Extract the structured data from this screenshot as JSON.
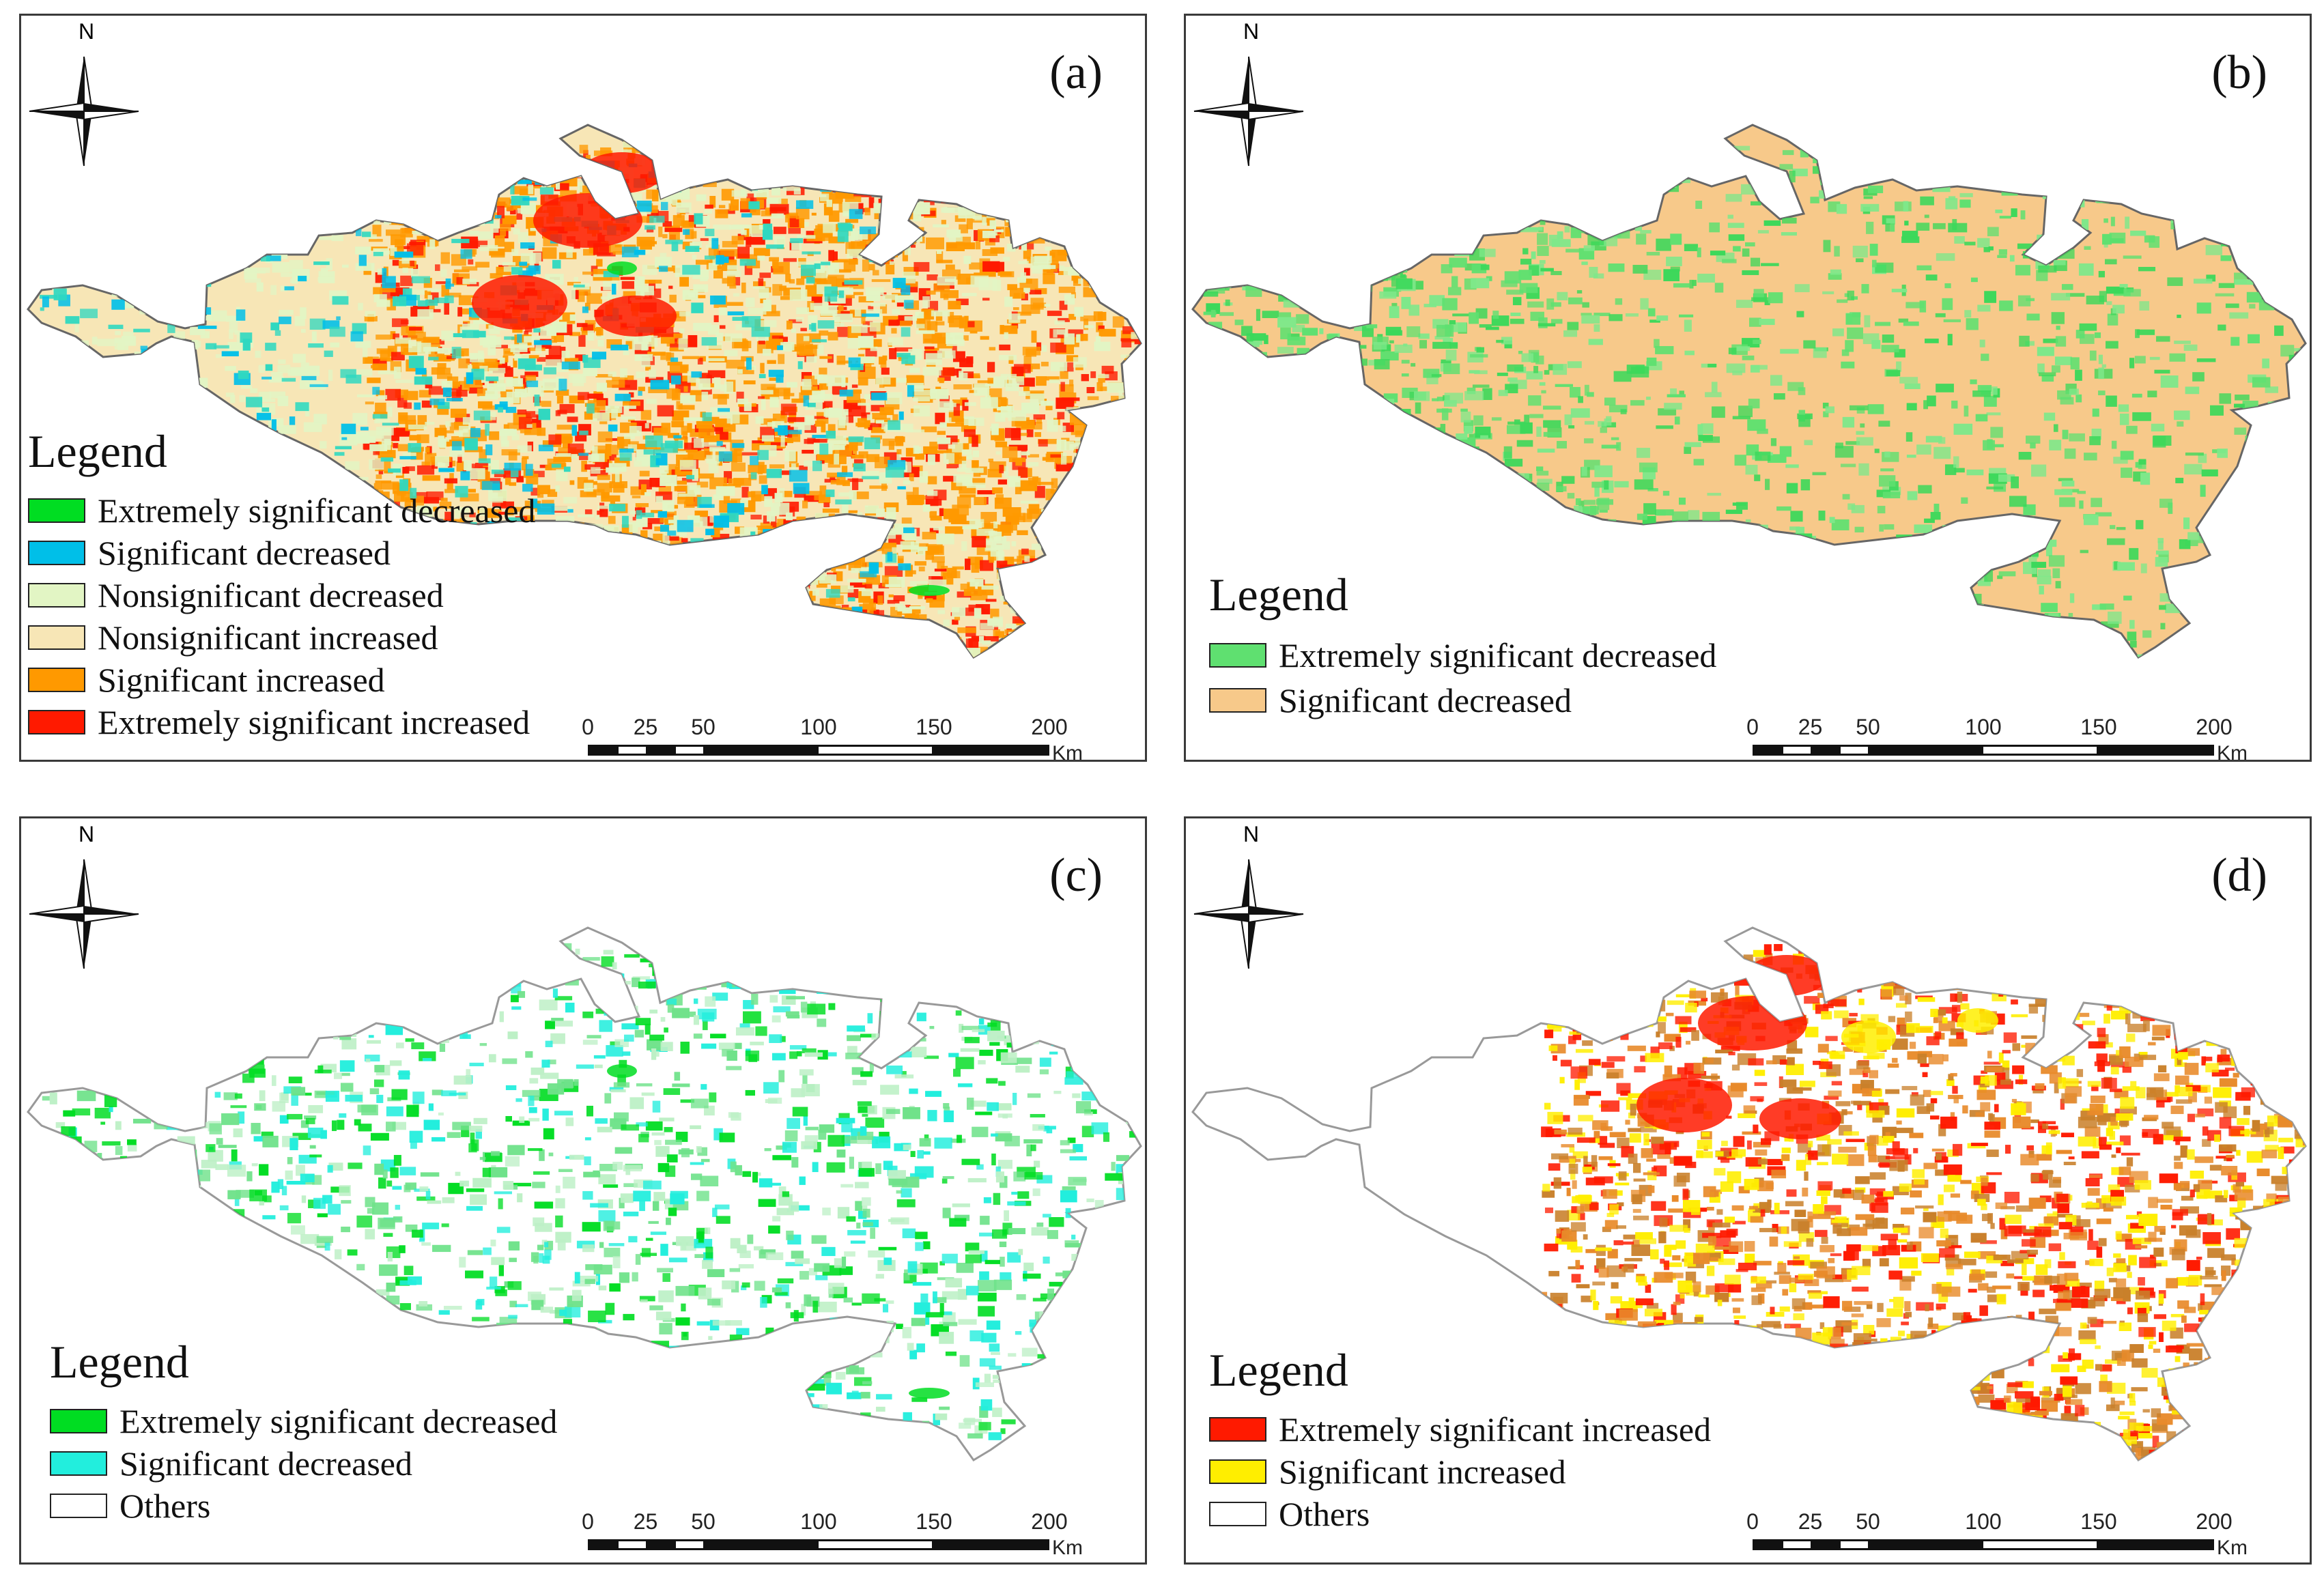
{
  "compass_letter": "N",
  "legend_title": "Legend",
  "scale": {
    "ticks": [
      "0",
      "25",
      "50",
      "100",
      "150",
      "200"
    ],
    "tick_values": [
      0,
      25,
      50,
      100,
      150,
      200
    ],
    "unit": "Km"
  },
  "colors": {
    "extremely_significant_decreased": "#00dd22",
    "significant_decreased_a": "#00bfe8",
    "nonsignificant_decreased": "#e2f5c4",
    "nonsignificant_increased": "#f7e6b6",
    "significant_increased_a": "#ff9900",
    "extremely_significant_increased": "#ff1a00",
    "b_extremely_significant_decreased": "#5fe070",
    "b_significant_decreased": "#f7c98a",
    "c_significant_decreased": "#22eedd",
    "d_significant_increased": "#ffee00",
    "others": "#ffffff"
  },
  "panels": [
    {
      "label": "(a)",
      "legend": [
        {
          "label": "Extremely significant decreased",
          "color": "#00dd22"
        },
        {
          "label": "Significant decreased",
          "color": "#00bfe8"
        },
        {
          "label": "Nonsignificant decreased",
          "color": "#e2f5c4"
        },
        {
          "label": "Nonsignificant increased",
          "color": "#f7e6b6"
        },
        {
          "label": "Significant increased",
          "color": "#ff9900"
        },
        {
          "label": "Extremely significant increased",
          "color": "#ff1a00"
        }
      ]
    },
    {
      "label": "(b)",
      "legend": [
        {
          "label": "Extremely significant decreased",
          "color": "#5fe070"
        },
        {
          "label": "Significant decreased",
          "color": "#f7c98a"
        }
      ]
    },
    {
      "label": "(c)",
      "legend": [
        {
          "label": "Extremely significant decreased",
          "color": "#00dd22"
        },
        {
          "label": "Significant decreased",
          "color": "#22eedd"
        },
        {
          "label": "Others",
          "color": "#ffffff"
        }
      ]
    },
    {
      "label": "(d)",
      "legend": [
        {
          "label": "Extremely significant increased",
          "color": "#ff1a00"
        },
        {
          "label": "Significant increased",
          "color": "#ffee00"
        },
        {
          "label": "Others",
          "color": "#ffffff"
        }
      ]
    }
  ]
}
